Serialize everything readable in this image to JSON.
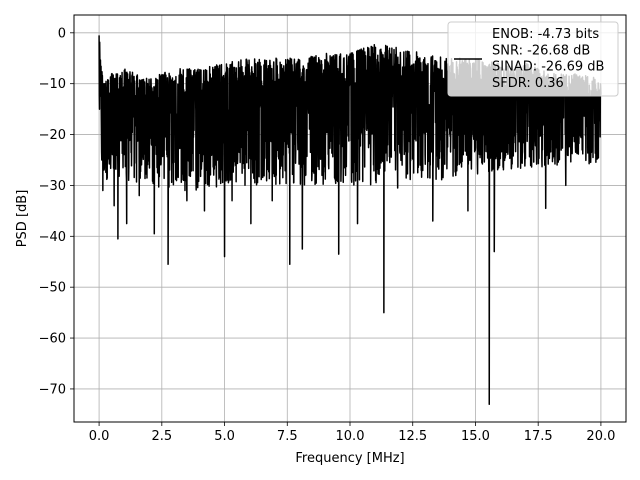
{
  "chart_data": {
    "type": "line",
    "title": "",
    "xlabel": "Frequency [MHz]",
    "ylabel": "PSD [dB]",
    "xlim": [
      -1,
      21
    ],
    "ylim": [
      -76.5,
      3.5
    ],
    "x_ticks": [
      0.0,
      2.5,
      5.0,
      7.5,
      10.0,
      12.5,
      15.0,
      17.5,
      20.0
    ],
    "x_tick_labels": [
      "0.0",
      "2.5",
      "5.0",
      "7.5",
      "10.0",
      "12.5",
      "15.0",
      "17.5",
      "20.0"
    ],
    "y_ticks": [
      0,
      -10,
      -20,
      -30,
      -40,
      -50,
      -60,
      -70
    ],
    "y_tick_labels": [
      "0",
      "−10",
      "−20",
      "−30",
      "−40",
      "−50",
      "−60",
      "−70"
    ],
    "grid": true,
    "legend_placement": "upper-right",
    "legend_lines": [
      "ENOB: -4.73 bits",
      "SNR: -26.68 dB",
      "SINAD: -26.69 dB",
      "SFDR: 0.36"
    ],
    "series": [
      {
        "color": "#000000",
        "envelope_x": [
          0.0,
          0.1,
          0.2,
          0.5,
          1.0,
          2.0,
          3.0,
          4.0,
          5.0,
          6.0,
          7.0,
          8.0,
          9.0,
          10.0,
          11.0,
          12.0,
          13.0,
          14.0,
          15.0,
          16.0,
          17.0,
          18.0,
          19.0,
          20.0
        ],
        "upper_envelope": [
          -0.5,
          -6,
          -10,
          -8,
          -7,
          -9,
          -7,
          -7,
          -6,
          -5,
          -5,
          -5,
          -4,
          -4,
          -2,
          -3,
          -4,
          -5,
          -5,
          -6,
          -6,
          -8,
          -8,
          -9
        ],
        "lower_envelope": [
          -17,
          -25,
          -30,
          -28,
          -29,
          -30,
          -31,
          -31,
          -30,
          -30,
          -30,
          -30,
          -30,
          -30,
          -30,
          -29,
          -29,
          -29,
          -28,
          -27,
          -27,
          -26,
          -26,
          -26
        ],
        "median": [
          -8,
          -14,
          -16,
          -15,
          -15,
          -15,
          -14,
          -14,
          -14,
          -13,
          -13,
          -13,
          -13,
          -13,
          -12,
          -12,
          -13,
          -13,
          -13,
          -13,
          -13,
          -14,
          -14,
          -15
        ],
        "notable_dips": [
          {
            "x": 0.15,
            "y": -31
          },
          {
            "x": 0.6,
            "y": -34
          },
          {
            "x": 0.75,
            "y": -40.5
          },
          {
            "x": 1.1,
            "y": -37.5
          },
          {
            "x": 1.6,
            "y": -32
          },
          {
            "x": 2.2,
            "y": -39.5
          },
          {
            "x": 2.75,
            "y": -45.5
          },
          {
            "x": 3.5,
            "y": -33
          },
          {
            "x": 4.2,
            "y": -35
          },
          {
            "x": 5.0,
            "y": -44
          },
          {
            "x": 5.3,
            "y": -33
          },
          {
            "x": 6.05,
            "y": -37.5
          },
          {
            "x": 6.9,
            "y": -33
          },
          {
            "x": 7.6,
            "y": -45.5
          },
          {
            "x": 8.1,
            "y": -42.5
          },
          {
            "x": 9.55,
            "y": -43.5
          },
          {
            "x": 10.3,
            "y": -37.5
          },
          {
            "x": 11.35,
            "y": -55
          },
          {
            "x": 11.9,
            "y": -30.5
          },
          {
            "x": 13.3,
            "y": -37
          },
          {
            "x": 14.7,
            "y": -35
          },
          {
            "x": 15.55,
            "y": -73
          },
          {
            "x": 15.75,
            "y": -43
          },
          {
            "x": 17.8,
            "y": -34.5
          },
          {
            "x": 18.6,
            "y": -30
          }
        ]
      }
    ]
  }
}
